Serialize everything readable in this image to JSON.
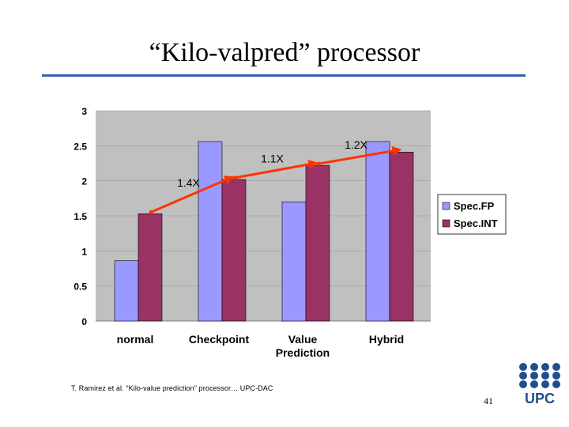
{
  "slide": {
    "title": "“Kilo-valpred” processor",
    "citation": "T. Ramirez et al. \"Kilo-value prediction\" processor… UPC-DAC",
    "page_number": "41",
    "logo_text": "UPC"
  },
  "colors": {
    "rule": "#3a5fb0",
    "plot_bg": "#c0c0c0",
    "specfp": "#9999ff",
    "specint": "#993366",
    "arrow": "#ff3300",
    "logo": "#1f4e8c"
  },
  "chart_data": {
    "type": "bar",
    "categories": [
      [
        "normal"
      ],
      [
        "Checkpoint"
      ],
      [
        "Value",
        "Prediction"
      ],
      [
        "Hybrid"
      ]
    ],
    "series": [
      {
        "name": "Spec.FP",
        "values": [
          0.86,
          2.56,
          1.7,
          2.56
        ]
      },
      {
        "name": "Spec.INT",
        "values": [
          1.53,
          2.02,
          2.22,
          2.41
        ]
      }
    ],
    "ylim": [
      0,
      3
    ],
    "yticks": [
      0,
      0.5,
      1,
      1.5,
      2,
      2.5,
      3
    ],
    "ytick_labels": [
      "0",
      "0.5",
      "1",
      "1.5",
      "2",
      "2.5",
      "3"
    ],
    "legend_position": "right",
    "annotations": [
      {
        "label": "1.4X",
        "from_category": 0,
        "to_category": 1
      },
      {
        "label": "1.1X",
        "from_category": 1,
        "to_category": 2
      },
      {
        "label": "1.2X",
        "from_category": 2,
        "to_category": 3
      }
    ]
  }
}
